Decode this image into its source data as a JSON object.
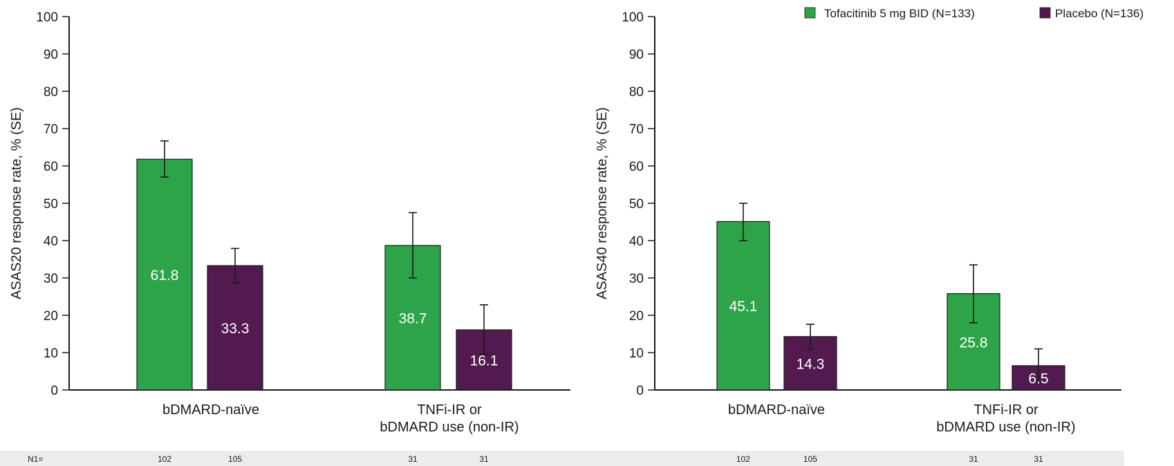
{
  "colors": {
    "tofacitinib": "#2ea44a",
    "placebo": "#521a4f",
    "n_row_bg": "#ececec"
  },
  "legend": {
    "position": "top-right",
    "items": [
      {
        "label": "Tofacitinib 5 mg BID (N=133)",
        "color_key": "tofacitinib"
      },
      {
        "label": "Placebo (N=136)",
        "color_key": "placebo"
      }
    ]
  },
  "n_row": {
    "label": "N1=",
    "values": [
      [
        "102",
        "105",
        "31",
        "31"
      ],
      [
        "102",
        "105",
        "31",
        "31"
      ]
    ]
  },
  "chart_data": [
    {
      "type": "bar",
      "ylabel": "ASAS20 response rate, % (SE)",
      "xlabel": "",
      "ylim": [
        0,
        100
      ],
      "yticks": [
        0,
        10,
        20,
        30,
        40,
        50,
        60,
        70,
        80,
        90,
        100
      ],
      "categories": [
        [
          "bDMARD-naïve"
        ],
        [
          "TNFi-IR or",
          "bDMARD use (non-IR)"
        ]
      ],
      "series": [
        {
          "name": "Tofacitinib 5 mg BID (N=133)",
          "values": [
            61.8,
            38.7
          ],
          "error_low": [
            57.0,
            30.0
          ],
          "error_high": [
            66.7,
            47.5
          ]
        },
        {
          "name": "Placebo (N=136)",
          "values": [
            33.3,
            16.1
          ],
          "error_low": [
            28.7,
            9.5
          ],
          "error_high": [
            37.9,
            22.8
          ]
        }
      ],
      "value_labels": [
        [
          "61.8",
          "38.7"
        ],
        [
          "33.3",
          "16.1"
        ]
      ],
      "grid": false
    },
    {
      "type": "bar",
      "ylabel": "ASAS40 response rate, % (SE)",
      "xlabel": "",
      "ylim": [
        0,
        100
      ],
      "yticks": [
        0,
        10,
        20,
        30,
        40,
        50,
        60,
        70,
        80,
        90,
        100
      ],
      "categories": [
        [
          "bDMARD-naïve"
        ],
        [
          "TNFi-IR or",
          "bDMARD use (non-IR)"
        ]
      ],
      "series": [
        {
          "name": "Tofacitinib 5 mg BID (N=133)",
          "values": [
            45.1,
            25.8
          ],
          "error_low": [
            40.0,
            18.0
          ],
          "error_high": [
            50.0,
            33.5
          ]
        },
        {
          "name": "Placebo (N=136)",
          "values": [
            14.3,
            6.5
          ],
          "error_low": [
            11.0,
            2.0
          ],
          "error_high": [
            17.6,
            11.0
          ]
        }
      ],
      "value_labels": [
        [
          "45.1",
          "25.8"
        ],
        [
          "14.3",
          "6.5"
        ]
      ],
      "grid": false
    }
  ]
}
